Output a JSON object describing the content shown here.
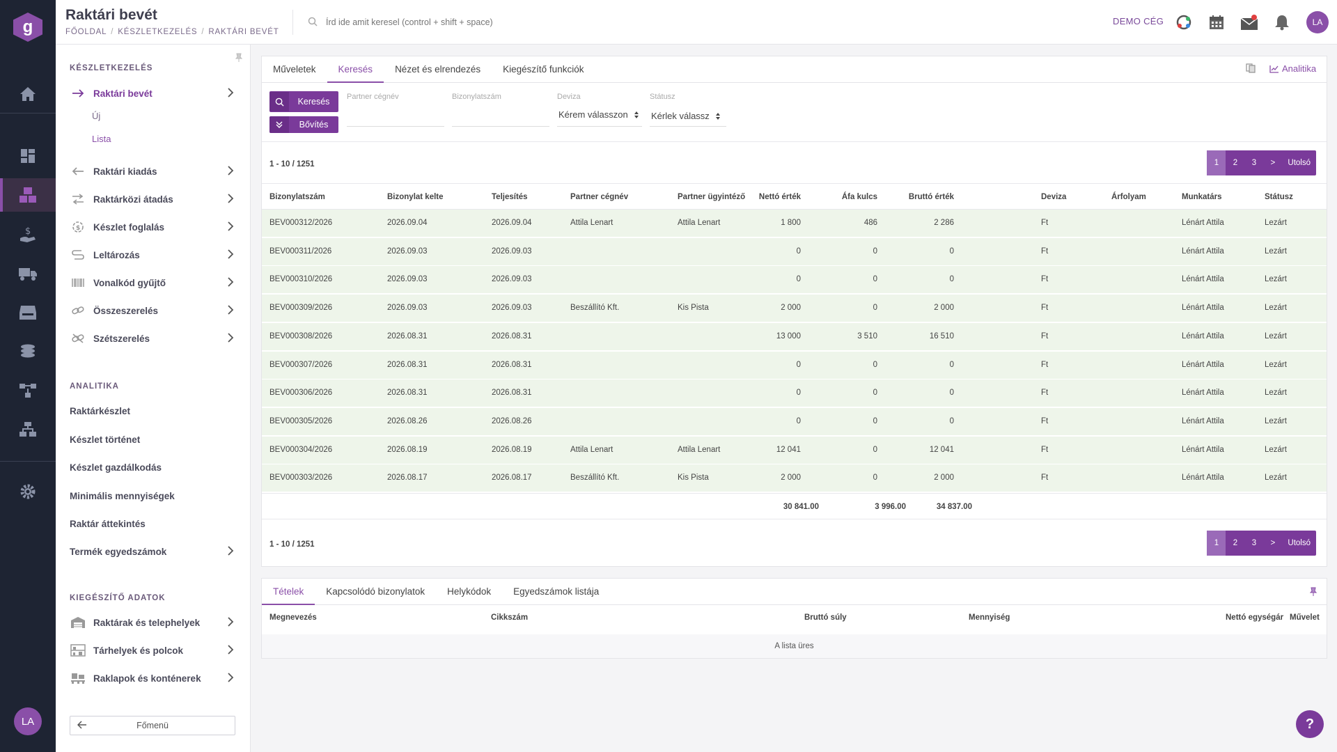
{
  "app": {
    "logo_letter": "g",
    "user_initials": "LA",
    "company": "DEMO CÉG"
  },
  "header": {
    "title": "Raktári bevét",
    "breadcrumb": [
      "FŐOLDAL",
      "KÉSZLETKEZELÉS",
      "RAKTÁRI BEVÉT"
    ],
    "search_placeholder": "Írd ide amit keresel (control + shift + space)"
  },
  "sidebar": {
    "section1": "KÉSZLETKEZELÉS",
    "items": [
      {
        "label": "Raktári bevét",
        "icon": "arrow-right-icon"
      },
      {
        "label": "Raktári kiadás",
        "icon": "arrow-left-icon"
      },
      {
        "label": "Raktárközi átadás",
        "icon": "transfer-icon"
      },
      {
        "label": "Készlet foglalás",
        "icon": "reserve-icon"
      },
      {
        "label": "Leltározás",
        "icon": "inventory-icon"
      },
      {
        "label": "Vonalkód gyűjtő",
        "icon": "barcode-icon"
      },
      {
        "label": "Összeszerelés",
        "icon": "link-icon"
      },
      {
        "label": "Szétszerelés",
        "icon": "unlink-icon"
      }
    ],
    "sub_items": [
      "Új",
      "Lista"
    ],
    "section2": "ANALITIKA",
    "analytics": [
      "Raktárkészlet",
      "Készlet történet",
      "Készlet gazdálkodás",
      "Minimális mennyiségek",
      "Raktár áttekintés",
      "Termék egyedszámok"
    ],
    "section3": "KIEGÉSZÍTŐ ADATOK",
    "extra": [
      {
        "label": "Raktárak és telephelyek",
        "icon": "warehouse-icon"
      },
      {
        "label": "Tárhelyek és polcok",
        "icon": "shelf-icon"
      },
      {
        "label": "Raklapok és konténerek",
        "icon": "pallet-icon"
      }
    ],
    "back_label": "Főmenü"
  },
  "main": {
    "tabs": [
      "Műveletek",
      "Keresés",
      "Nézet és elrendezés",
      "Kiegészítő funkciók"
    ],
    "analytics_label": "Analitika",
    "search_button": "Keresés",
    "expand_button": "Bővítés",
    "filters": {
      "partner_label": "Partner cégnév",
      "doc_label": "Bizonylatszám",
      "currency_label": "Deviza",
      "currency_value": "Kérem válasszon",
      "status_label": "Státusz",
      "status_value": "Kérlek válassz"
    },
    "count": "1 - 10 / 1251",
    "pager": [
      "1",
      "2",
      "3",
      ">",
      "Utolsó"
    ],
    "columns": [
      "Bizonylatszám",
      "Bizonylat kelte",
      "Teljesítés",
      "Partner cégnév",
      "Partner ügyintéző",
      "Nettó érték",
      "Áfa kulcs",
      "Bruttó érték",
      "Deviza",
      "Árfolyam",
      "Munkatárs",
      "Státusz"
    ],
    "rows": [
      [
        "BEV000312/2026",
        "2026.09.04",
        "2026.09.04",
        "Attila Lenart",
        "Attila Lenart",
        "1 800",
        "486",
        "2 286",
        "Ft",
        "",
        "Lénárt Attila",
        "Lezárt"
      ],
      [
        "BEV000311/2026",
        "2026.09.03",
        "2026.09.03",
        "",
        "",
        "0",
        "0",
        "0",
        "Ft",
        "",
        "Lénárt Attila",
        "Lezárt"
      ],
      [
        "BEV000310/2026",
        "2026.09.03",
        "2026.09.03",
        "",
        "",
        "0",
        "0",
        "0",
        "Ft",
        "",
        "Lénárt Attila",
        "Lezárt"
      ],
      [
        "BEV000309/2026",
        "2026.09.03",
        "2026.09.03",
        "Beszállító Kft.",
        "Kis Pista",
        "2 000",
        "0",
        "2 000",
        "Ft",
        "",
        "Lénárt Attila",
        "Lezárt"
      ],
      [
        "BEV000308/2026",
        "2026.08.31",
        "2026.08.31",
        "",
        "",
        "13 000",
        "3 510",
        "16 510",
        "Ft",
        "",
        "Lénárt Attila",
        "Lezárt"
      ],
      [
        "BEV000307/2026",
        "2026.08.31",
        "2026.08.31",
        "",
        "",
        "0",
        "0",
        "0",
        "Ft",
        "",
        "Lénárt Attila",
        "Lezárt"
      ],
      [
        "BEV000306/2026",
        "2026.08.31",
        "2026.08.31",
        "",
        "",
        "0",
        "0",
        "0",
        "Ft",
        "",
        "Lénárt Attila",
        "Lezárt"
      ],
      [
        "BEV000305/2026",
        "2026.08.26",
        "2026.08.26",
        "",
        "",
        "0",
        "0",
        "0",
        "Ft",
        "",
        "Lénárt Attila",
        "Lezárt"
      ],
      [
        "BEV000304/2026",
        "2026.08.19",
        "2026.08.19",
        "Attila Lenart",
        "Attila Lenart",
        "12 041",
        "0",
        "12 041",
        "Ft",
        "",
        "Lénárt Attila",
        "Lezárt"
      ],
      [
        "BEV000303/2026",
        "2026.08.17",
        "2026.08.17",
        "Beszállító Kft.",
        "Kis Pista",
        "2 000",
        "0",
        "2 000",
        "Ft",
        "",
        "Lénárt Attila",
        "Lezárt"
      ]
    ],
    "totals": {
      "net": "30 841.00",
      "vat": "3 996.00",
      "gross": "34 837.00"
    }
  },
  "detail": {
    "tabs": [
      "Tételek",
      "Kapcsolódó bizonylatok",
      "Helykódok",
      "Egyedszámok listája"
    ],
    "columns": [
      "Megnevezés",
      "Cikkszám",
      "Bruttó súly",
      "Mennyiség",
      "Nettó egységár",
      "Művelet"
    ],
    "empty_text": "A lista üres"
  },
  "help_label": "?"
}
